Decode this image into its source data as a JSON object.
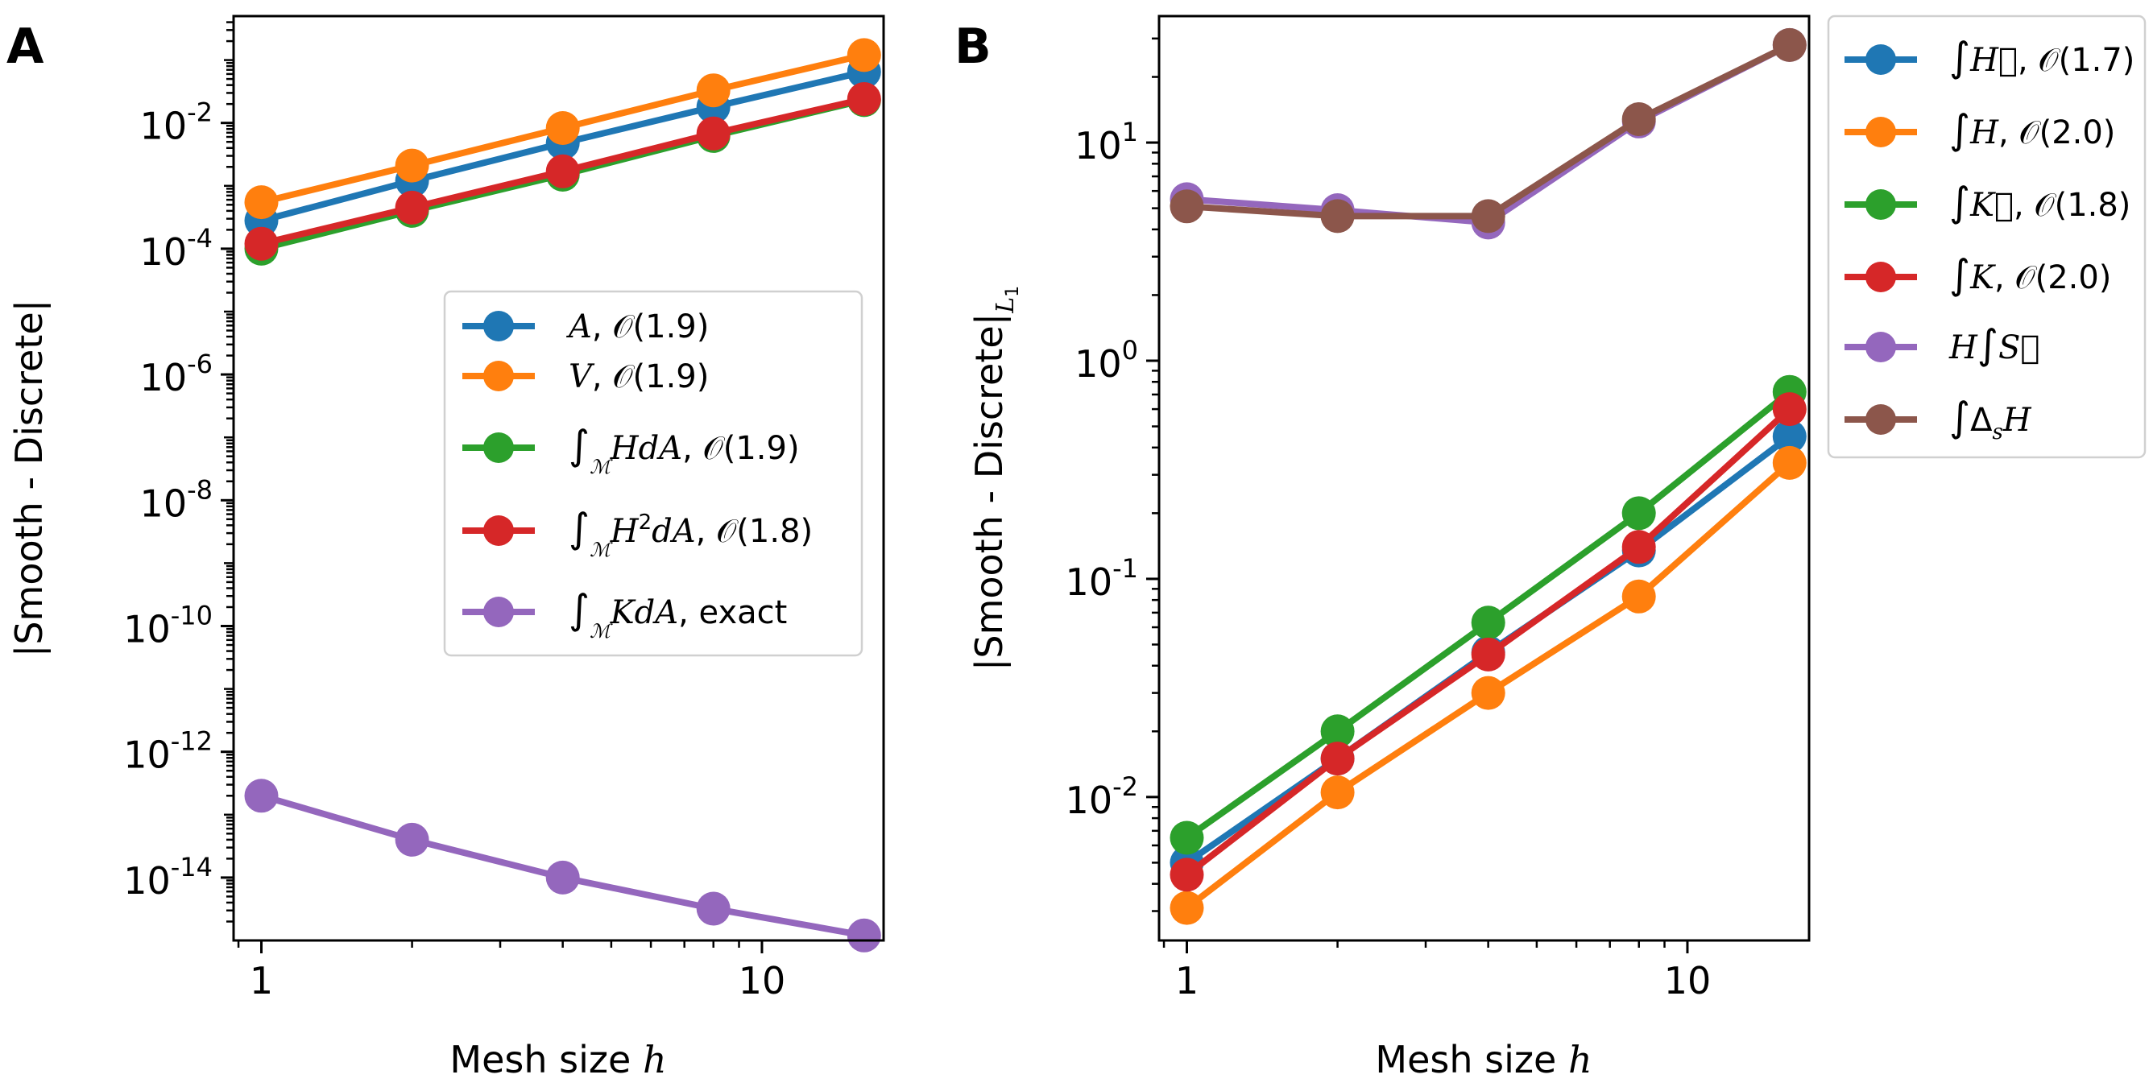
{
  "chart_data": [
    {
      "panel_label": "A",
      "type": "line",
      "xscale": "log",
      "yscale": "log",
      "xlabel": "Mesh size h",
      "ylabel": "|Smooth - Discrete|",
      "xlim": [
        0.88,
        17.5
      ],
      "ylim": [
        1e-15,
        0.5
      ],
      "xticks": [
        {
          "value": 1,
          "label": "1"
        },
        {
          "value": 10,
          "label": "10"
        }
      ],
      "yticks": [
        {
          "value": 0.01,
          "mant": "10",
          "exp": "-2"
        },
        {
          "value": 0.0001,
          "mant": "10",
          "exp": "-4"
        },
        {
          "value": 1e-06,
          "mant": "10",
          "exp": "-6"
        },
        {
          "value": 1e-08,
          "mant": "10",
          "exp": "-8"
        },
        {
          "value": 1e-10,
          "mant": "10",
          "exp": "-10"
        },
        {
          "value": 1e-12,
          "mant": "10",
          "exp": "-12"
        },
        {
          "value": 1e-14,
          "mant": "10",
          "exp": "-14"
        }
      ],
      "legend_position": "center-right",
      "x": [
        1,
        2,
        4,
        8,
        16
      ],
      "series": [
        {
          "name": "A, O(1.9)",
          "math": "A",
          "suffix": ", 𝒪(1.9)",
          "color": "#1f77b4",
          "values": [
            0.00028,
            0.0012,
            0.0048,
            0.018,
            0.065
          ]
        },
        {
          "name": "V, O(1.9)",
          "math": "V",
          "suffix": ", 𝒪(1.9)",
          "color": "#ff7f0e",
          "values": [
            0.00055,
            0.0021,
            0.0083,
            0.033,
            0.12
          ]
        },
        {
          "name": "∫M HdA, O(1.9)",
          "math": "∫ℳ HdA",
          "suffix": ", 𝒪(1.9)",
          "color": "#2ca02c",
          "values": [
            0.0001,
            0.0004,
            0.0015,
            0.0062,
            0.023
          ]
        },
        {
          "name": "∫M H²dA, O(1.8)",
          "math": "∫ℳ H²dA",
          "suffix": ", 𝒪(1.8)",
          "color": "#d62728",
          "values": [
            0.00012,
            0.00045,
            0.0017,
            0.0068,
            0.024
          ]
        },
        {
          "name": "∫M KdA, exact",
          "math": "∫ℳ KdA",
          "suffix": ", exact",
          "color": "#9467bd",
          "values": [
            2e-13,
            4e-14,
            1e-14,
            3.2e-15,
            1.2e-15
          ]
        }
      ]
    },
    {
      "panel_label": "B",
      "type": "line",
      "xscale": "log",
      "yscale": "log",
      "xlabel": "Mesh size h",
      "ylabel": "|Smooth - Discrete|L1",
      "xlim": [
        0.88,
        17.5
      ],
      "ylim": [
        0.0022,
        38
      ],
      "xticks": [
        {
          "value": 1,
          "label": "1"
        },
        {
          "value": 10,
          "label": "10"
        }
      ],
      "yticks": [
        {
          "value": 10,
          "mant": "10",
          "exp": "1"
        },
        {
          "value": 1,
          "mant": "10",
          "exp": "0"
        },
        {
          "value": 0.1,
          "mant": "10",
          "exp": "-1"
        },
        {
          "value": 0.01,
          "mant": "10",
          "exp": "-2"
        }
      ],
      "legend_position": "outside-right",
      "x": [
        1,
        2,
        4,
        8,
        16
      ],
      "series": [
        {
          "name": "∫H⃗, O(1.7)",
          "math": "∫H⃗",
          "suffix": ", 𝒪(1.7)",
          "color": "#1f77b4",
          "values": [
            0.005,
            0.015,
            0.046,
            0.135,
            0.45
          ]
        },
        {
          "name": "∫H, O(2.0)",
          "math": "∫H",
          "suffix": ", 𝒪(2.0)",
          "color": "#ff7f0e",
          "values": [
            0.0031,
            0.0105,
            0.03,
            0.083,
            0.34
          ]
        },
        {
          "name": "∫K⃗, O(1.8)",
          "math": "∫K⃗",
          "suffix": ", 𝒪(1.8)",
          "color": "#2ca02c",
          "values": [
            0.0065,
            0.02,
            0.063,
            0.2,
            0.72
          ]
        },
        {
          "name": "∫K, O(2.0)",
          "math": "∫K",
          "suffix": ", 𝒪(2.0)",
          "color": "#d62728",
          "values": [
            0.0044,
            0.015,
            0.045,
            0.14,
            0.6
          ]
        },
        {
          "name": "H∫S⃗",
          "math": "H∫S⃗",
          "suffix": "",
          "color": "#9467bd",
          "values": [
            5.5,
            4.9,
            4.3,
            12.5,
            28
          ]
        },
        {
          "name": "∫ΔsH",
          "math": "∫ΔₛH",
          "suffix": "",
          "color": "#8c564b",
          "values": [
            5.1,
            4.6,
            4.6,
            12.8,
            28
          ]
        }
      ]
    }
  ]
}
